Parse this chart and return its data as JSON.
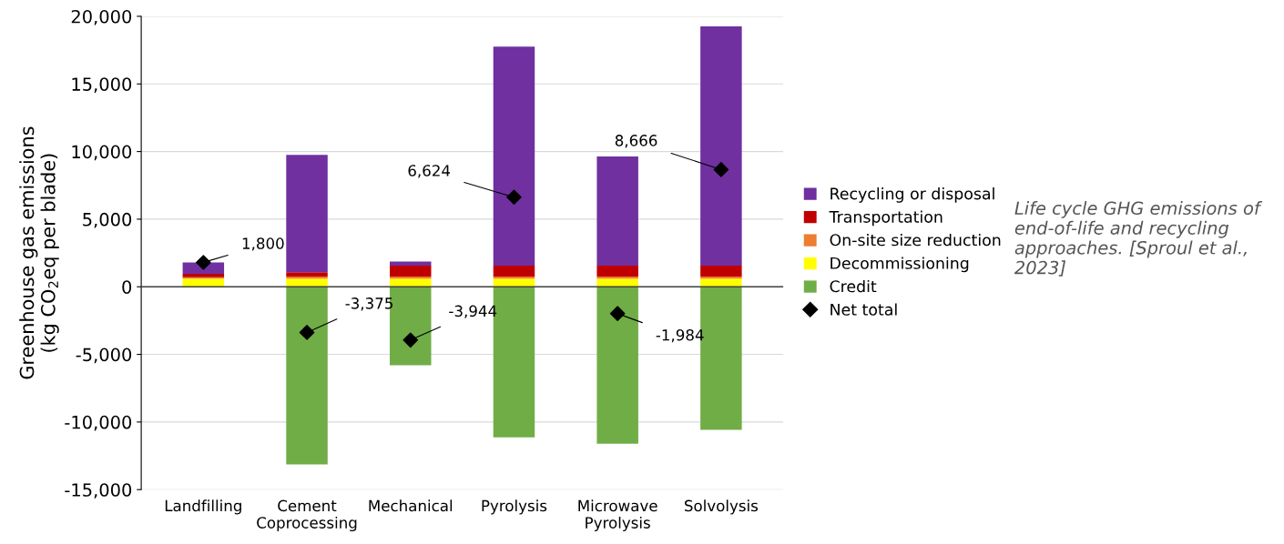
{
  "chart_data": {
    "type": "bar",
    "stacked": true,
    "categories": [
      "Landfilling",
      "Cement\nCoprocessing",
      "Mechanical",
      "Pyrolysis",
      "Microwave\nPyrolysis",
      "Solvolysis"
    ],
    "ylabel": "Greenhouse gas emissions\n(kg CO$_{2}$eq per blade)",
    "ylim": [
      -15000,
      20000
    ],
    "yticks": [
      {
        "value": -15000,
        "label": "-15,000"
      },
      {
        "value": -10000,
        "label": "-10,000"
      },
      {
        "value": -5000,
        "label": "-5,000"
      },
      0,
      {
        "value": 5000,
        "label": "5,000"
      },
      {
        "value": 10000,
        "label": "10,000"
      },
      {
        "value": 15000,
        "label": "15,000"
      },
      {
        "value": 20000,
        "label": "20,000"
      }
    ],
    "grid": "y",
    "legend": "right",
    "annotations": [
      "Life cycle GHG emissions of end-of-life and recycling approaches. [Sproul et al., 2023]"
    ],
    "series": [
      {
        "name": "Credit",
        "color": "#70ad47",
        "values": [
          null,
          -13140,
          -5810,
          -11140,
          -11610,
          -10580
        ]
      },
      {
        "name": "Decommissioning",
        "color": "#ffff00",
        "values": [
          600,
          600,
          600,
          600,
          600,
          600
        ]
      },
      {
        "name": "On-site size reduction",
        "color": "#ed7d31",
        "values": [
          100,
          150,
          150,
          150,
          150,
          150
        ]
      },
      {
        "name": "Transportation",
        "color": "#c00000",
        "values": [
          250,
          330,
          820,
          820,
          820,
          820
        ]
      },
      {
        "name": "Recycling or disposal",
        "color": "#7030a0",
        "values": [
          850,
          8680,
          300,
          16190,
          8060,
          17680
        ]
      },
      {
        "name": "Net total",
        "type": "scatter",
        "marker": "diamond",
        "color": "#000000",
        "values": [
          1800,
          -3375,
          -3944,
          6624,
          -1984,
          8666
        ],
        "value_labels": [
          "1,800",
          "-3,375",
          "-3,944",
          "6,624",
          "-1,984",
          "8,666"
        ]
      }
    ]
  }
}
